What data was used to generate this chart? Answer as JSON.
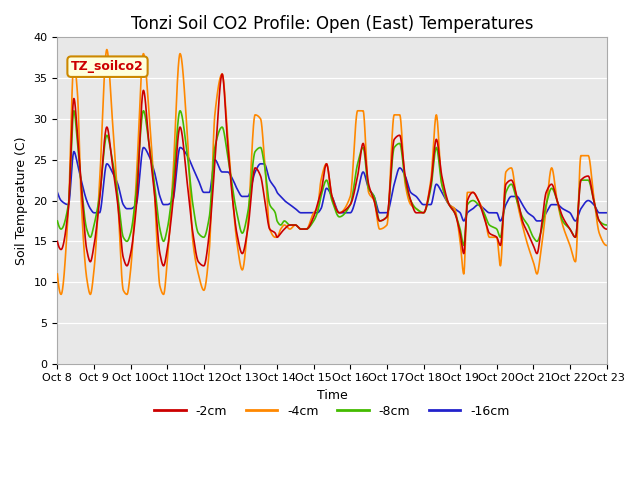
{
  "title": "Tonzi Soil CO2 Profile: Open (East) Temperatures",
  "xlabel": "Time",
  "ylabel": "Soil Temperature (C)",
  "ylim": [
    0,
    40
  ],
  "bg_color": "#e8e8e8",
  "fig_color": "#ffffff",
  "colors": {
    "-2cm": "#cc0000",
    "-4cm": "#ff8800",
    "-8cm": "#44bb00",
    "-16cm": "#2222cc"
  },
  "legend_label": "TZ_soilco2",
  "legend_box_color": "#ffffdd",
  "legend_box_edge": "#cc8800",
  "xtick_labels": [
    "Oct 8",
    "Oct 9",
    "Oct 10",
    "Oct 11",
    "Oct 12",
    "Oct 13",
    "Oct 14",
    "Oct 15",
    "Oct 16",
    "Oct 17",
    "Oct 18",
    "Oct 19",
    "Oct 20",
    "Oct 21",
    "Oct 22",
    "Oct 23"
  ],
  "title_fontsize": 12,
  "axis_fontsize": 9,
  "tick_fontsize": 8
}
